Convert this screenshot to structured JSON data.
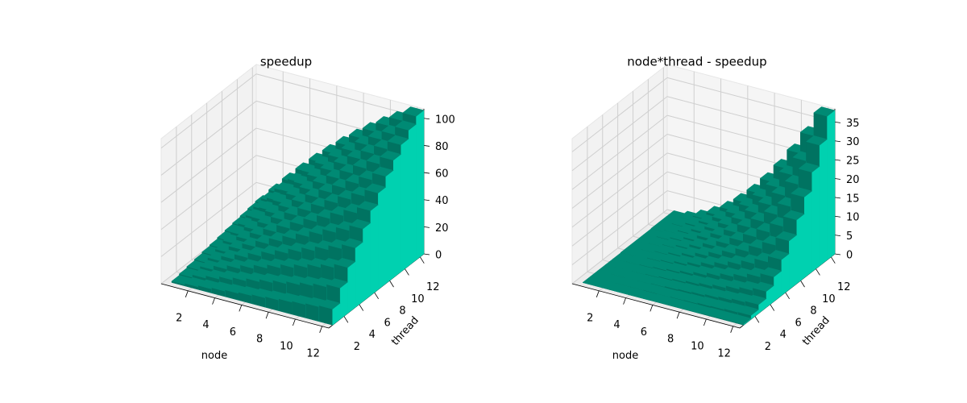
{
  "chart_data": [
    {
      "type": "bar3d",
      "title": "speedup",
      "xlabel": "node",
      "ylabel": "thread",
      "x": [
        1,
        2,
        3,
        4,
        5,
        6,
        7,
        8,
        9,
        10,
        11,
        12
      ],
      "y": [
        1,
        2,
        3,
        4,
        5,
        6,
        7,
        8,
        9,
        10,
        11,
        12
      ],
      "values": [
        [
          1,
          2,
          3,
          4,
          5,
          5.9,
          6.9,
          7.9,
          8.9,
          9.8,
          10.8,
          11.8
        ],
        [
          2,
          4,
          5.9,
          7.9,
          9.8,
          11.8,
          13.7,
          15.6,
          17.4,
          19.3,
          21.1,
          23
        ],
        [
          3,
          5.9,
          8.9,
          11.8,
          14.6,
          17.4,
          20.2,
          23,
          25.7,
          28.4,
          31,
          33.7
        ],
        [
          4,
          7.9,
          11.8,
          15.6,
          19.3,
          23,
          26.6,
          30.2,
          33.7,
          37.1,
          40.5,
          43.8
        ],
        [
          5,
          9.8,
          14.6,
          19.3,
          23.9,
          28.4,
          32.8,
          37.1,
          41.3,
          45.5,
          49.5,
          53.5
        ],
        [
          5.9,
          11.8,
          17.4,
          23,
          28.4,
          33.7,
          38.8,
          43.8,
          48.7,
          53.5,
          58.1,
          62.5
        ],
        [
          6.9,
          13.7,
          20.2,
          26.6,
          32.8,
          38.8,
          44.6,
          50.3,
          55.8,
          61.1,
          66.2,
          71.1
        ],
        [
          7.9,
          15.6,
          23,
          30.2,
          37.1,
          43.8,
          50.3,
          56.5,
          62.5,
          68.3,
          73.8,
          79.1
        ],
        [
          8.9,
          17.4,
          25.7,
          33.7,
          41.3,
          48.7,
          55.8,
          62.5,
          69,
          75.2,
          81.1,
          86.6
        ],
        [
          9.8,
          19.3,
          28.4,
          37.1,
          45.5,
          53.5,
          61.1,
          68.3,
          75.2,
          81.7,
          87.8,
          93.6
        ],
        [
          10.8,
          21.1,
          31,
          40.5,
          49.5,
          58.1,
          66.2,
          73.8,
          81.1,
          87.8,
          94.1,
          100
        ],
        [
          11.8,
          23,
          33.7,
          43.8,
          53.5,
          62.5,
          71.1,
          79.1,
          86.6,
          93.6,
          100,
          105.9
        ]
      ],
      "color": "#00d1b0",
      "xlim": [
        0,
        12.5
      ],
      "ylim": [
        0,
        12.5
      ],
      "zlim": [
        0,
        107
      ],
      "xticks": [
        2,
        4,
        6,
        8,
        10,
        12
      ],
      "yticks": [
        2,
        4,
        6,
        8,
        10,
        12
      ],
      "zticks": [
        0,
        20,
        40,
        60,
        80,
        100
      ],
      "grid": true
    },
    {
      "type": "bar3d",
      "title": "node*thread - speedup",
      "xlabel": "node",
      "ylabel": "thread",
      "x": [
        1,
        2,
        3,
        4,
        5,
        6,
        7,
        8,
        9,
        10,
        11,
        12
      ],
      "y": [
        1,
        2,
        3,
        4,
        5,
        6,
        7,
        8,
        9,
        10,
        11,
        12
      ],
      "values": [
        [
          0,
          0,
          0,
          0,
          0,
          0.1,
          0.1,
          0.1,
          0.1,
          0.2,
          0.2,
          0.2
        ],
        [
          0,
          0,
          0.1,
          0.1,
          0.2,
          0.2,
          0.3,
          0.4,
          0.6,
          0.7,
          0.9,
          1.0
        ],
        [
          0,
          0.1,
          0.1,
          0.2,
          0.4,
          0.6,
          0.8,
          1.0,
          1.3,
          1.6,
          2.0,
          2.3
        ],
        [
          0,
          0.1,
          0.2,
          0.4,
          0.7,
          1.0,
          1.4,
          1.8,
          2.3,
          2.9,
          3.5,
          4.2
        ],
        [
          0,
          0.2,
          0.4,
          0.7,
          1.1,
          1.6,
          2.2,
          2.9,
          3.7,
          4.5,
          5.5,
          6.5
        ],
        [
          0.1,
          0.2,
          0.6,
          1.0,
          1.6,
          2.3,
          3.2,
          4.2,
          5.3,
          6.5,
          7.9,
          9.5
        ],
        [
          0.1,
          0.3,
          0.8,
          1.4,
          2.2,
          3.2,
          4.4,
          5.7,
          7.2,
          8.9,
          10.8,
          12.9
        ],
        [
          0.1,
          0.4,
          1.0,
          1.8,
          2.9,
          4.2,
          5.7,
          7.5,
          9.5,
          11.7,
          14.2,
          16.9
        ],
        [
          0.1,
          0.6,
          1.3,
          2.3,
          3.7,
          5.3,
          7.2,
          9.5,
          12.0,
          14.8,
          17.9,
          21.4
        ],
        [
          0.2,
          0.7,
          1.6,
          2.9,
          4.5,
          6.5,
          8.9,
          11.7,
          14.8,
          18.3,
          22.2,
          26.4
        ],
        [
          0.2,
          0.9,
          2.0,
          3.5,
          5.5,
          7.9,
          10.8,
          14.2,
          17.9,
          22.2,
          26.9,
          32.0
        ],
        [
          0.2,
          1.0,
          2.3,
          4.2,
          6.5,
          9.5,
          12.9,
          16.9,
          21.4,
          26.4,
          32.0,
          38.1
        ]
      ],
      "color": "#00d1b0",
      "xlim": [
        0,
        12.5
      ],
      "ylim": [
        0,
        12.5
      ],
      "zlim": [
        0,
        38.5
      ],
      "xticks": [
        2,
        4,
        6,
        8,
        10,
        12
      ],
      "yticks": [
        2,
        4,
        6,
        8,
        10,
        12
      ],
      "zticks": [
        0,
        5,
        10,
        15,
        20,
        25,
        30,
        35
      ],
      "grid": true
    }
  ]
}
